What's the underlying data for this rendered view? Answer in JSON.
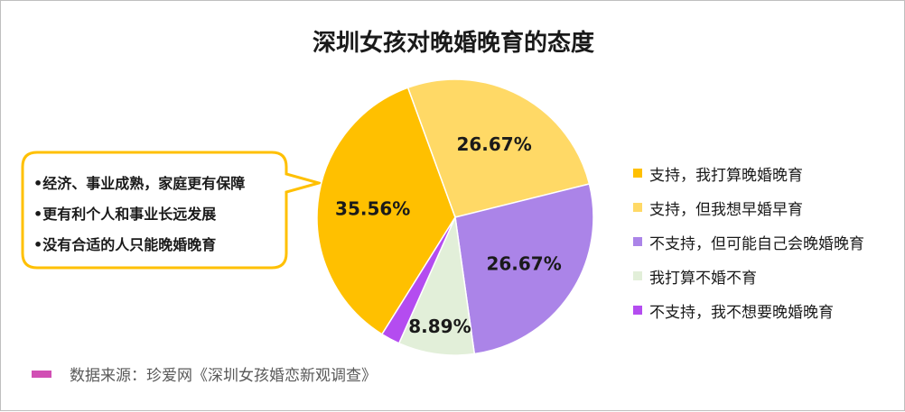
{
  "chart_data": {
    "type": "pie",
    "title": "深圳女孩对晚婚晚育的态度",
    "slices": [
      {
        "label": "支持，我打算晚婚晚育",
        "value": 35.56,
        "value_label": "35.56%",
        "color": "#ffc000"
      },
      {
        "label": "支持，但我想早婚早育",
        "value": 26.67,
        "value_label": "26.67%",
        "color": "#ffd966"
      },
      {
        "label": "不支持，但可能自己会晚婚晚育",
        "value": 26.67,
        "value_label": "26.67%",
        "color": "#ab84e8"
      },
      {
        "label": "我打算不婚不育",
        "value": 8.89,
        "value_label": "8.89%",
        "color": "#e2efd9"
      },
      {
        "label": "不支持，我不想要晚婚晚育",
        "value": 2.22,
        "value_label": "",
        "color": "#b44cf0"
      }
    ],
    "legend_position": "right",
    "callout": {
      "lines": [
        "•经济、事业成熟，家庭更有保障",
        "•更有利个人和事业长远发展",
        "•没有合适的人只能晚婚晚育"
      ],
      "border_color": "#ffc000"
    },
    "source": "数据来源：珍爱网《深圳女孩婚恋新观调查》",
    "source_color": "#d14fb4"
  }
}
